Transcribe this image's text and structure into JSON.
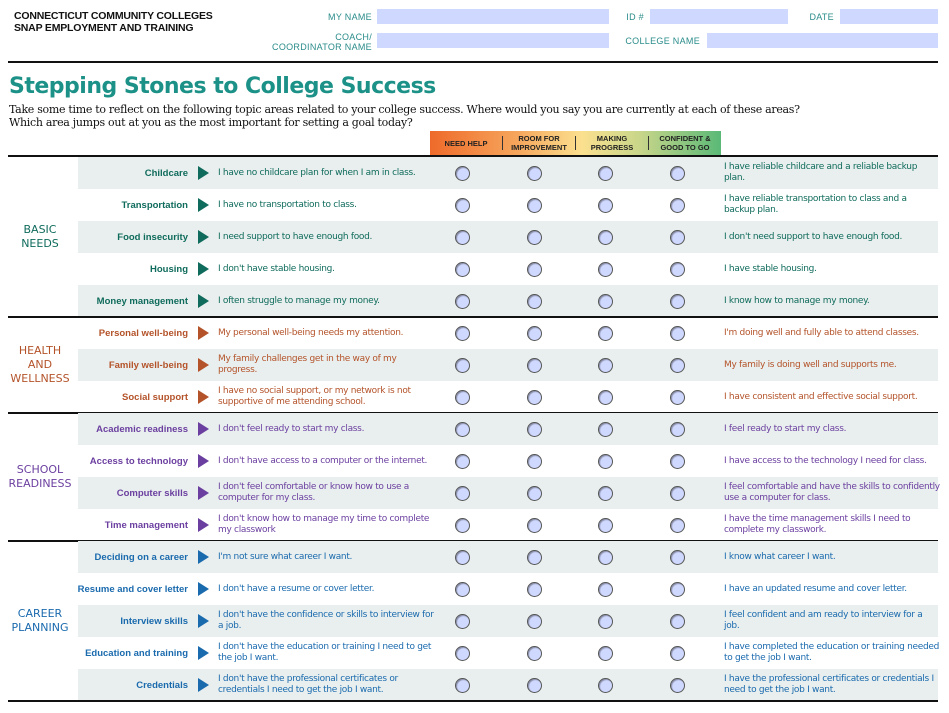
{
  "header": {
    "org_line1": "CONNECTICUT COMMUNITY COLLEGES",
    "org_line2": "SNAP EMPLOYMENT AND TRAINING",
    "fields": {
      "my_name": {
        "label": "MY NAME",
        "value": ""
      },
      "id": {
        "label": "ID #",
        "value": ""
      },
      "date": {
        "label": "DATE",
        "value": ""
      },
      "coach_line1": "COACH/",
      "coach": {
        "label": "COORDINATOR NAME",
        "value": ""
      },
      "college": {
        "label": "COLLEGE NAME",
        "value": ""
      }
    }
  },
  "title": "Stepping Stones to College Success",
  "intro_line1": "Take some time to reflect on the following topic areas related to your college success. Where would you say you are currently at each of these areas?",
  "intro_line2": "Which area jumps out at you as the most important for setting a goal today?",
  "scale": [
    "NEED HELP",
    "ROOM FOR IMPROVEMENT",
    "MAKING PROGRESS",
    "CONFIDENT & GOOD TO GO"
  ],
  "colors": {
    "basic": "#0f6b5c",
    "health": "#b4532a",
    "school": "#6b3fa0",
    "career": "#1a6aae",
    "shade": "#e9efee",
    "radio": "#cfd8ff"
  },
  "sections": [
    {
      "name": "BASIC NEEDS",
      "color_key": "basic",
      "items": [
        {
          "topic": "Childcare",
          "left": "I have no childcare plan for when I am in class.",
          "right": "I have reliable childcare and a reliable backup plan."
        },
        {
          "topic": "Transportation",
          "left": "I have no transportation to class.",
          "right": "I have reliable transportation to class and a backup plan."
        },
        {
          "topic": "Food insecurity",
          "left": "I need support to have enough food.",
          "right": "I don't need support to have enough food."
        },
        {
          "topic": "Housing",
          "left": "I don't have stable housing.",
          "right": "I have stable housing."
        },
        {
          "topic": "Money management",
          "left": "I often struggle to manage my money.",
          "right": "I know how to manage my money."
        }
      ]
    },
    {
      "name": "HEALTH AND WELLNESS",
      "color_key": "health",
      "items": [
        {
          "topic": "Personal well-being",
          "left": "My personal well-being needs my attention.",
          "right": "I'm doing well and fully able to attend classes."
        },
        {
          "topic": "Family well-being",
          "left": "My family challenges get in the way of my progress.",
          "right": "My family is doing well and supports me."
        },
        {
          "topic": "Social support",
          "left": "I have no social support, or my network is not supportive of me attending school.",
          "right": "I have consistent and effective social support."
        }
      ]
    },
    {
      "name": "SCHOOL READINESS",
      "color_key": "school",
      "items": [
        {
          "topic": "Academic readiness",
          "left": "I don't feel ready to start my class.",
          "right": "I feel ready to start my class."
        },
        {
          "topic": "Access to technology",
          "left": "I don't have access to a computer or the internet.",
          "right": "I have access to the technology I need for class."
        },
        {
          "topic": "Computer skills",
          "left": "I don't feel comfortable or know how to use a computer for my class.",
          "right": "I feel comfortable and have the skills to confidently use a computer for class."
        },
        {
          "topic": "Time management",
          "left": "I don't know how to manage my time to complete my classwork",
          "right": "I have the time management skills I need to complete my classwork."
        }
      ]
    },
    {
      "name": "CAREER PLANNING",
      "color_key": "career",
      "items": [
        {
          "topic": "Deciding on a career",
          "left": "I'm not sure what career I want.",
          "right": "I know what career I want."
        },
        {
          "topic": "Resume and cover letter",
          "left": "I don't have a resume or cover letter.",
          "right": "I have an updated resume and cover letter."
        },
        {
          "topic": "Interview skills",
          "left": "I don't have the confidence or skills to interview for a job.",
          "right": "I feel confident and am ready to interview for a job."
        },
        {
          "topic": "Education and training",
          "left": "I don't have the education or training I need to get the job I want.",
          "right": "I have completed the education or training needed to get the job I want."
        },
        {
          "topic": "Credentials",
          "left": "I don't have the professional certificates or credentials I need to get the job I want.",
          "right": "I have the professional certificates or credentials I need to get the job I want."
        }
      ]
    }
  ]
}
